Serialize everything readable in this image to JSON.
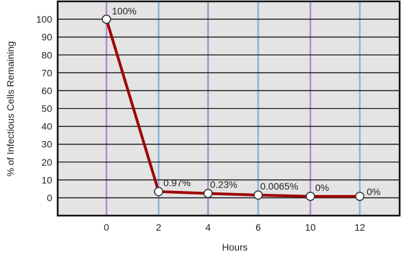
{
  "chart_data": {
    "type": "line",
    "title": "",
    "xlabel": "Hours",
    "ylabel": "% of Infectious Cells Remaining",
    "categories": [
      "0",
      "2",
      "4",
      "6",
      "10",
      "12"
    ],
    "series": [
      {
        "values": [
          100,
          0.97,
          0.23,
          0.0065,
          0,
          0
        ],
        "labels": [
          "100%",
          "0.97%",
          "0.23%",
          "0.0065%",
          "0%",
          "0%"
        ],
        "color": "#a00000"
      }
    ],
    "y_ticks": [
      0,
      10,
      20,
      30,
      40,
      50,
      60,
      70,
      80,
      90,
      100
    ],
    "ylim": [
      -10,
      110
    ],
    "grid": true,
    "colors": {
      "plot_background": "#e4e4e4",
      "horizontal_grid": "#111111",
      "vertical_grid_a": "#b48cc8",
      "vertical_grid_b": "#8cb4dc",
      "line": "#a00000",
      "marker_fill": "#ffffff"
    }
  }
}
